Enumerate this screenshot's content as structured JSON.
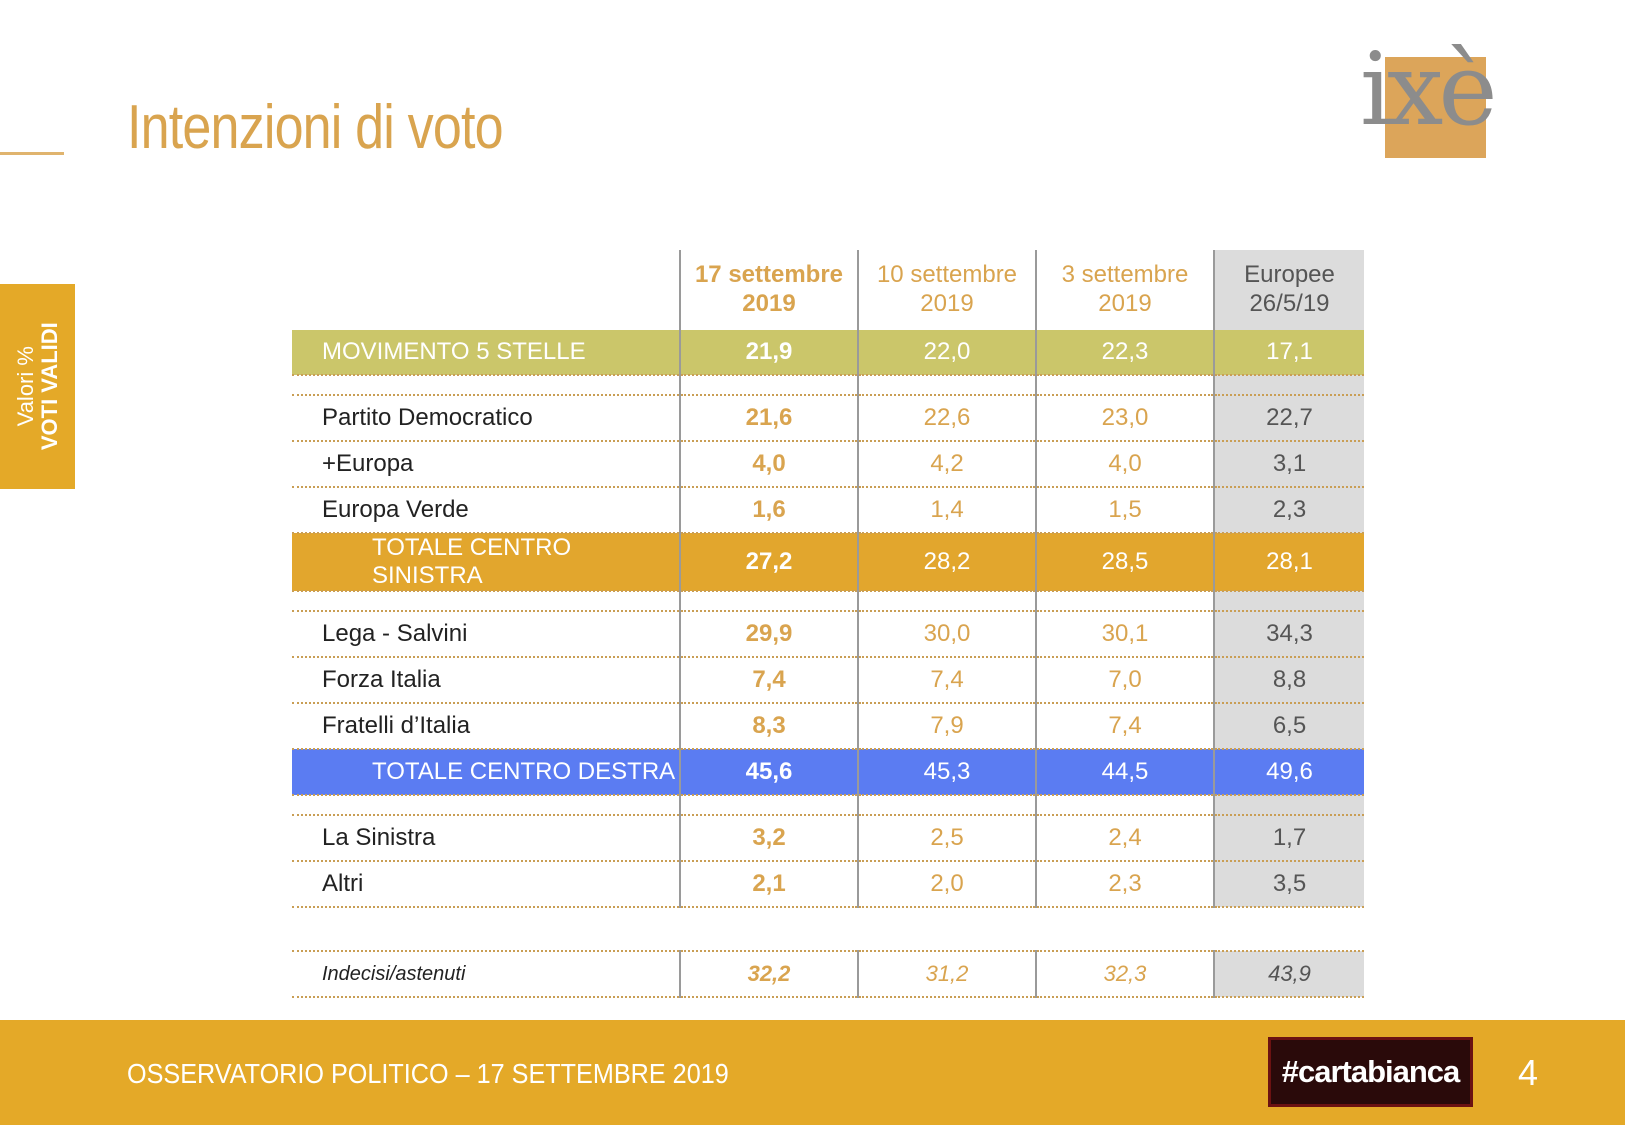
{
  "header": {
    "title": "Intenzioni di voto"
  },
  "logo": {
    "text": "ixè"
  },
  "side_tab": {
    "line1": "Valori %",
    "line2": "VOTI VALIDI"
  },
  "table": {
    "columns": [
      "17 settembre 2019",
      "10 settembre 2019",
      "3 settembre 2019",
      "Europee 26/5/19"
    ],
    "col1": {
      "a": "17 settembre",
      "b": "2019"
    },
    "col2": {
      "a": "10 settembre",
      "b": "2019"
    },
    "col3": {
      "a": "3 settembre",
      "b": "2019"
    },
    "col4": {
      "a": "Europee",
      "b": "26/5/19"
    },
    "rows": [
      {
        "name": "MOVIMENTO 5 STELLE",
        "v": [
          "21,9",
          "22,0",
          "22,3",
          "17,1"
        ]
      },
      {
        "name": "Partito Democratico",
        "v": [
          "21,6",
          "22,6",
          "23,0",
          "22,7"
        ]
      },
      {
        "name": "+Europa",
        "v": [
          "4,0",
          "4,2",
          "4,0",
          "3,1"
        ]
      },
      {
        "name": "Europa Verde",
        "v": [
          "1,6",
          "1,4",
          "1,5",
          "2,3"
        ]
      },
      {
        "name": "TOTALE CENTRO SINISTRA",
        "v": [
          "27,2",
          "28,2",
          "28,5",
          "28,1"
        ]
      },
      {
        "name": "Lega - Salvini",
        "v": [
          "29,9",
          "30,0",
          "30,1",
          "34,3"
        ]
      },
      {
        "name": "Forza Italia",
        "v": [
          "7,4",
          "7,4",
          "7,0",
          "8,8"
        ]
      },
      {
        "name": "Fratelli d’Italia",
        "v": [
          "8,3",
          "7,9",
          "7,4",
          "6,5"
        ]
      },
      {
        "name": "TOTALE CENTRO DESTRA",
        "v": [
          "45,6",
          "45,3",
          "44,5",
          "49,6"
        ]
      },
      {
        "name": "La Sinistra",
        "v": [
          "3,2",
          "2,5",
          "2,4",
          "1,7"
        ]
      },
      {
        "name": "Altri",
        "v": [
          "2,1",
          "2,0",
          "2,3",
          "3,5"
        ]
      },
      {
        "name": "Indecisi/astenuti",
        "v": [
          "32,2",
          "31,2",
          "32,3",
          "43,9"
        ]
      }
    ]
  },
  "colors": {
    "gold": "#e4a928",
    "m5s_band": "#cbc66a",
    "centro_sinistra_band": "#e2a62d",
    "centro_destra_band": "#5b7cf2"
  },
  "footer": {
    "text": "OSSERVATORIO POLITICO – 17 SETTEMBRE 2019",
    "badge": "#cartabianca",
    "page": "4"
  }
}
